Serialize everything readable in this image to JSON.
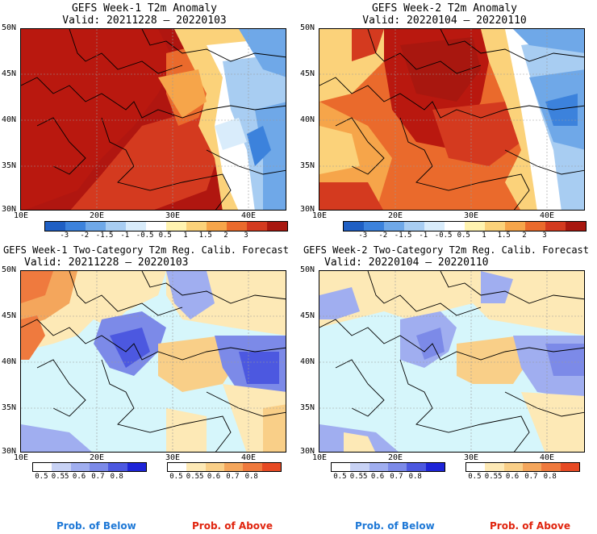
{
  "titles": {
    "p1_line1": "GEFS Week-1 T2m Anomaly",
    "p1_line2": "Valid: 20211228 – 20220103",
    "p2_line1": "GEFS Week-2 T2m Anomaly",
    "p2_line2": "Valid: 20220104 – 20220110",
    "p3_line1": "GEFS Week-1 Two-Category T2m Reg. Calib. Forecast",
    "p3_line2": "Valid: 20211228 – 20220103",
    "p4_line1": "GEFS Week-2 Two-Category T2m Reg. Calib. Forecast",
    "p4_line2": "Valid: 20220104 – 20220110"
  },
  "axes": {
    "lat_labels": [
      "50N",
      "45N",
      "40N",
      "35N",
      "30N"
    ],
    "lon_labels": [
      "10E",
      "20E",
      "30E",
      "40E"
    ]
  },
  "anomaly_colorbar": {
    "labels": [
      "-3",
      "-2",
      "-1.5",
      "-1",
      "-0.5",
      "0.5",
      "1",
      "1.5",
      "2",
      "3"
    ],
    "colors": [
      "#1f5fc4",
      "#3c82dc",
      "#6fa8e8",
      "#a8cdf2",
      "#d9ecfb",
      "#ffffff",
      "#fff3b0",
      "#fbd27a",
      "#f6a54a",
      "#ea6a2c",
      "#d43a1f",
      "#a8170f"
    ]
  },
  "prob_colorbar": {
    "below_labels": [
      "0.5",
      "0.55",
      "0.6",
      "0.7",
      "0.8"
    ],
    "above_labels": [
      "0.5",
      "0.55",
      "0.6",
      "0.7",
      "0.8"
    ],
    "below_colors": [
      "#ffffff",
      "#c8d2f5",
      "#a0aef0",
      "#7c8ae8",
      "#4c58e0",
      "#1d24d8"
    ],
    "above_colors": [
      "#ffffff",
      "#fde9b6",
      "#f9cf88",
      "#f4a65c",
      "#ef7a3e",
      "#e74a24"
    ]
  },
  "legend": {
    "prob_below": "Prob. of Below",
    "prob_above": "Prob. of Above"
  },
  "colors": {
    "sea": "#d6f6fb",
    "below_text": "#1e78d6",
    "above_text": "#e0240e"
  }
}
